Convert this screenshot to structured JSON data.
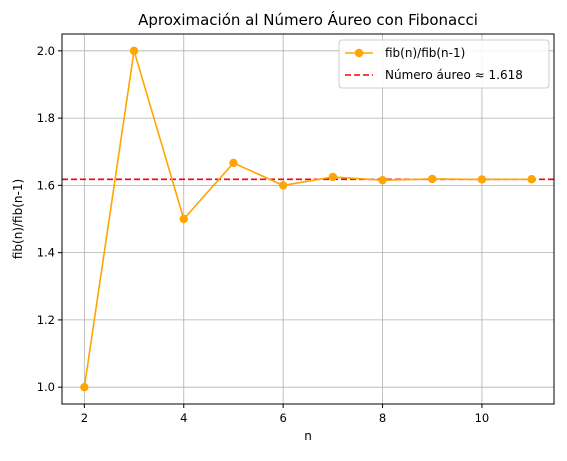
{
  "chart_data": {
    "type": "line",
    "title": "Aproximación al Número Áureo con Fibonacci",
    "xlabel": "n",
    "ylabel": "fib(n)/fib(n-1)",
    "xlim": [
      1.55,
      11.45
    ],
    "ylim": [
      0.95,
      2.05
    ],
    "xticks": [
      2,
      4,
      6,
      8,
      10
    ],
    "yticks": [
      1.0,
      1.2,
      1.4,
      1.6,
      1.8,
      2.0
    ],
    "grid": true,
    "legend_position": "upper-right",
    "series": [
      {
        "name": "fib(n)/fib(n-1)",
        "color": "#ffa500",
        "marker": "circle",
        "x": [
          2,
          3,
          4,
          5,
          6,
          7,
          8,
          9,
          10,
          11
        ],
        "y": [
          1.0,
          2.0,
          1.5,
          1.6667,
          1.6,
          1.625,
          1.6154,
          1.619,
          1.6176,
          1.6182
        ]
      }
    ],
    "reference_lines": [
      {
        "name": "Número áureo ≈ 1.618",
        "y": 1.618,
        "color": "#ff0000",
        "style": "dashed"
      }
    ]
  }
}
